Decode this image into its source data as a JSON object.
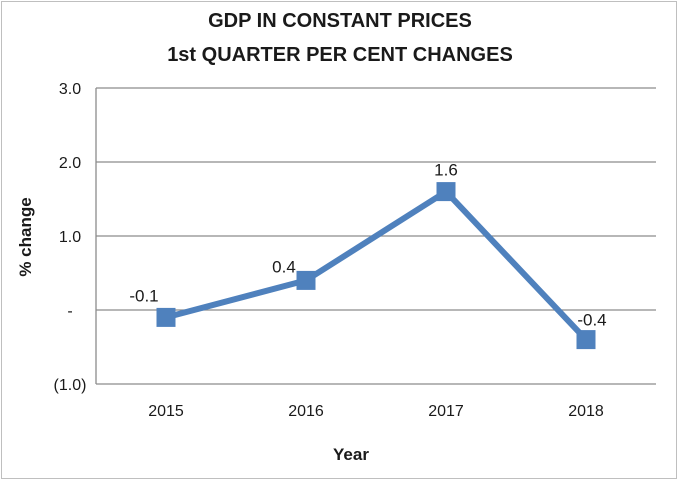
{
  "chart_data": {
    "type": "line",
    "title": "GDP IN CONSTANT PRICES",
    "subtitle": "1st QUARTER PER CENT CHANGES",
    "xlabel": "Year",
    "ylabel": "%  change",
    "categories": [
      "2015",
      "2016",
      "2017",
      "2018"
    ],
    "series": [
      {
        "values": [
          -0.1,
          0.4,
          1.6,
          -0.4
        ],
        "data_labels": [
          "-0.1",
          "0.4",
          "1.6",
          "-0.4"
        ]
      }
    ],
    "ylim": [
      -1.0,
      3.0
    ],
    "yticks": [
      {
        "value": -1.0,
        "label": "(1.0)"
      },
      {
        "value": 0.0,
        "label": "-"
      },
      {
        "value": 1.0,
        "label": "1.0"
      },
      {
        "value": 2.0,
        "label": "2.0"
      },
      {
        "value": 3.0,
        "label": "3.0"
      }
    ],
    "grid": true,
    "legend": "none",
    "colors": {
      "series": "#4f81bd",
      "grid": "#8c8c8c",
      "axis": "#8c8c8c"
    }
  }
}
